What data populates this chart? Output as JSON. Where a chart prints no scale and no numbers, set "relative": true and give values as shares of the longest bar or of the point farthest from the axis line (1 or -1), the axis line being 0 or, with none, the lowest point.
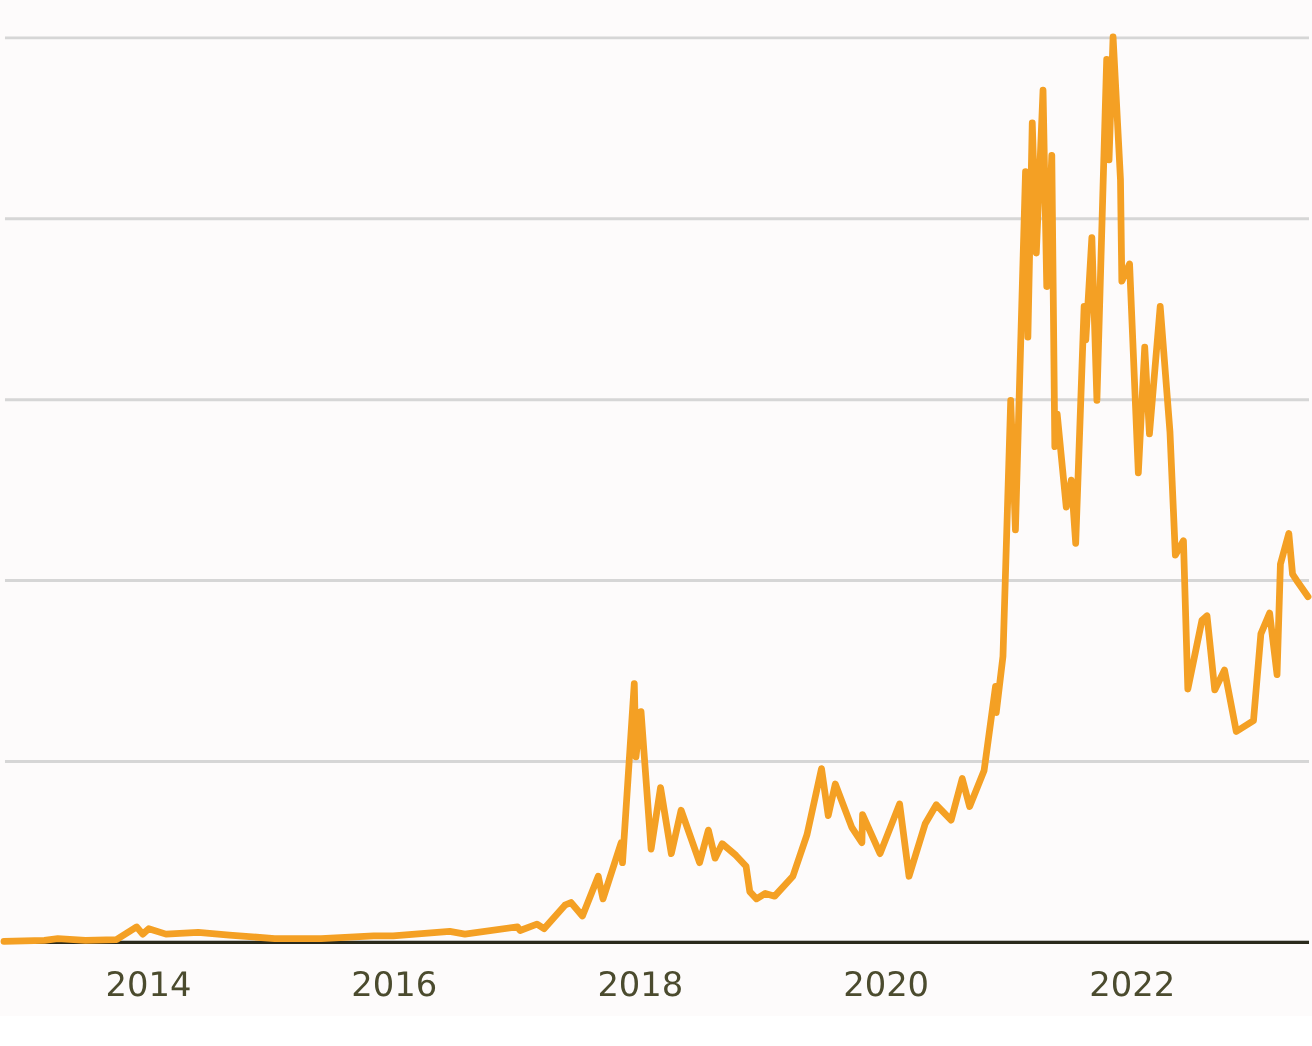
{
  "chart_data": {
    "type": "line",
    "relative": true,
    "grid": "y",
    "xlim": [
      "2012-11-01",
      "2023-06-10"
    ],
    "xticks": [
      "2014",
      "2016",
      "2018",
      "2020",
      "2022"
    ],
    "x": [
      "2012-11-01",
      "2013-03-01",
      "2013-04-10",
      "2013-07-01",
      "2013-10-01",
      "2013-11-30",
      "2013-12-18",
      "2014-01-05",
      "2014-02-25",
      "2014-06-01",
      "2014-09-01",
      "2015-01-14",
      "2015-06-01",
      "2015-11-04",
      "2016-01-01",
      "2016-06-17",
      "2016-08-01",
      "2017-01-04",
      "2017-01-12",
      "2017-03-03",
      "2017-03-24",
      "2017-05-25",
      "2017-06-12",
      "2017-07-16",
      "2017-09-01",
      "2017-09-15",
      "2017-11-08",
      "2017-11-12",
      "2017-12-17",
      "2017-12-22",
      "2018-01-06",
      "2018-02-05",
      "2018-03-05",
      "2018-04-06",
      "2018-05-05",
      "2018-06-29",
      "2018-07-25",
      "2018-08-14",
      "2018-09-04",
      "2018-10-15",
      "2018-11-14",
      "2018-11-25",
      "2018-12-15",
      "2019-01-10",
      "2019-02-07",
      "2019-04-02",
      "2019-05-14",
      "2019-06-26",
      "2019-07-16",
      "2019-08-06",
      "2019-09-24",
      "2019-10-24",
      "2019-10-26",
      "2019-12-17",
      "2020-02-13",
      "2020-03-12",
      "2020-04-29",
      "2020-06-01",
      "2020-07-15",
      "2020-08-17",
      "2020-09-08",
      "2020-10-21",
      "2020-11-24",
      "2020-11-26",
      "2020-12-16",
      "2021-01-08",
      "2021-01-22",
      "2021-02-21",
      "2021-02-28",
      "2021-03-13",
      "2021-03-25",
      "2021-04-14",
      "2021-04-25",
      "2021-05-10",
      "2021-05-19",
      "2021-05-26",
      "2021-06-22",
      "2021-07-07",
      "2021-07-20",
      "2021-08-14",
      "2021-08-19",
      "2021-09-06",
      "2021-09-21",
      "2021-10-20",
      "2021-10-27",
      "2021-11-08",
      "2021-11-30",
      "2021-12-04",
      "2021-12-27",
      "2022-01-22",
      "2022-02-10",
      "2022-02-24",
      "2022-03-28",
      "2022-04-26",
      "2022-05-12",
      "2022-06-05",
      "2022-06-18",
      "2022-07-30",
      "2022-08-14",
      "2022-09-06",
      "2022-10-05",
      "2022-11-09",
      "2022-12-30",
      "2023-01-21",
      "2023-02-16",
      "2023-03-10",
      "2023-03-20",
      "2023-04-14",
      "2023-04-25",
      "2023-05-11",
      "2023-06-10"
    ],
    "series": [
      {
        "color": "#f4a024",
        "values": [
          0.0,
          0.001,
          0.003,
          0.001,
          0.002,
          0.016,
          0.008,
          0.014,
          0.008,
          0.01,
          0.007,
          0.003,
          0.003,
          0.006,
          0.006,
          0.011,
          0.008,
          0.016,
          0.012,
          0.019,
          0.014,
          0.04,
          0.043,
          0.028,
          0.072,
          0.047,
          0.109,
          0.087,
          0.285,
          0.204,
          0.254,
          0.102,
          0.17,
          0.097,
          0.145,
          0.087,
          0.123,
          0.092,
          0.108,
          0.095,
          0.083,
          0.055,
          0.047,
          0.053,
          0.05,
          0.072,
          0.118,
          0.191,
          0.139,
          0.174,
          0.126,
          0.109,
          0.14,
          0.097,
          0.152,
          0.072,
          0.13,
          0.151,
          0.134,
          0.18,
          0.149,
          0.189,
          0.282,
          0.253,
          0.315,
          0.598,
          0.455,
          0.851,
          0.668,
          0.905,
          0.761,
          0.941,
          0.724,
          0.869,
          0.547,
          0.583,
          0.48,
          0.51,
          0.44,
          0.702,
          0.665,
          0.778,
          0.598,
          0.975,
          0.864,
          1.0,
          0.842,
          0.73,
          0.749,
          0.518,
          0.657,
          0.561,
          0.702,
          0.563,
          0.427,
          0.443,
          0.279,
          0.355,
          0.36,
          0.278,
          0.3,
          0.232,
          0.244,
          0.34,
          0.363,
          0.295,
          0.417,
          0.451,
          0.406,
          0.397,
          0.381
        ]
      }
    ]
  }
}
